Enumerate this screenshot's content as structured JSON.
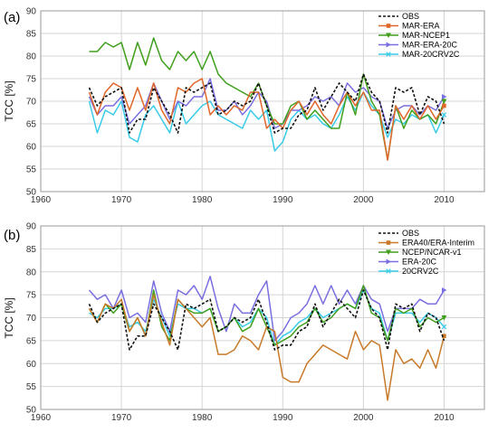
{
  "chart_data": [
    {
      "type": "line",
      "panel_label": "(a)",
      "ylabel": "TCC [%]",
      "xlim": [
        1960,
        2015
      ],
      "ylim": [
        50,
        90
      ],
      "xticks": [
        1960,
        1970,
        1980,
        1990,
        2000,
        2010
      ],
      "yticks": [
        50,
        55,
        60,
        65,
        70,
        75,
        80,
        85,
        90
      ],
      "grid": true,
      "legend_position": "top-right",
      "x": [
        1966,
        1967,
        1968,
        1969,
        1970,
        1971,
        1972,
        1973,
        1974,
        1975,
        1976,
        1977,
        1978,
        1979,
        1980,
        1981,
        1982,
        1983,
        1984,
        1985,
        1986,
        1987,
        1988,
        1989,
        1990,
        1991,
        1992,
        1993,
        1994,
        1995,
        1996,
        1997,
        1998,
        1999,
        2000,
        2001,
        2002,
        2003,
        2004,
        2005,
        2006,
        2007,
        2008,
        2009,
        2010
      ],
      "series": [
        {
          "name": "OBS",
          "color": "#111111",
          "dash": true,
          "marker": "none",
          "values": [
            73,
            69,
            71,
            72,
            73,
            63,
            66,
            66,
            73,
            70,
            67,
            63,
            73,
            72,
            73,
            74,
            67,
            68,
            70,
            69,
            70,
            74,
            69,
            63,
            64,
            64,
            67,
            68,
            73,
            68,
            71,
            74,
            72,
            70,
            76,
            72,
            70,
            63,
            73,
            72,
            73,
            67,
            71,
            70,
            65
          ]
        },
        {
          "name": "MAR-ERA",
          "color": "#e0662a",
          "dash": false,
          "marker": "square",
          "values": [
            72,
            67,
            72,
            74,
            73,
            68,
            73,
            68,
            74,
            68,
            65,
            73,
            72,
            74,
            75,
            67,
            69,
            67,
            69,
            68,
            72,
            72,
            64,
            66,
            64,
            68,
            70,
            67,
            70,
            67,
            65,
            69,
            72,
            69,
            72,
            68,
            68,
            57,
            69,
            66,
            69,
            66,
            69,
            66,
            69
          ]
        },
        {
          "name": "MAR-NCEP1",
          "color": "#3f9f1c",
          "dash": false,
          "marker": "triangle-down",
          "values": [
            81,
            81,
            83,
            82,
            83,
            77,
            83,
            78,
            84,
            79,
            77,
            81,
            79,
            81,
            77,
            81,
            76,
            74,
            73,
            72,
            71,
            74,
            69,
            65,
            65,
            69,
            70,
            66,
            68,
            66,
            64,
            64,
            72,
            67,
            76,
            70,
            67,
            57,
            69,
            64,
            68,
            66,
            67,
            65,
            70
          ]
        },
        {
          "name": "MAR-ERA-20C",
          "color": "#7a6fe0",
          "dash": false,
          "marker": "triangle-right",
          "values": [
            71,
            67,
            69,
            69,
            71,
            65,
            67,
            69,
            74,
            70,
            66,
            70,
            69,
            71,
            71,
            75,
            68,
            68,
            70,
            67,
            69,
            72,
            70,
            64,
            65,
            68,
            68,
            69,
            71,
            70,
            71,
            69,
            74,
            72,
            73,
            71,
            70,
            64,
            68,
            69,
            69,
            67,
            69,
            68,
            71
          ]
        },
        {
          "name": "MAR-20CRV2C",
          "color": "#38cbe8",
          "dash": false,
          "marker": "x",
          "values": [
            70,
            63,
            68,
            67,
            70,
            62,
            61,
            67,
            69,
            66,
            63,
            70,
            65,
            67,
            69,
            70,
            67,
            66,
            65,
            64,
            68,
            66,
            68,
            59,
            61,
            66,
            68,
            66,
            67,
            65,
            64,
            67,
            71,
            68,
            72,
            69,
            67,
            62,
            66,
            65,
            67,
            66,
            67,
            63,
            67
          ]
        }
      ]
    },
    {
      "type": "line",
      "panel_label": "(b)",
      "ylabel": "TCC [%]",
      "xlim": [
        1960,
        2015
      ],
      "ylim": [
        50,
        90
      ],
      "xticks": [
        1960,
        1970,
        1980,
        1990,
        2000,
        2010
      ],
      "yticks": [
        50,
        55,
        60,
        65,
        70,
        75,
        80,
        85,
        90
      ],
      "grid": true,
      "legend_position": "top-right",
      "x": [
        1966,
        1967,
        1968,
        1969,
        1970,
        1971,
        1972,
        1973,
        1974,
        1975,
        1976,
        1977,
        1978,
        1979,
        1980,
        1981,
        1982,
        1983,
        1984,
        1985,
        1986,
        1987,
        1988,
        1989,
        1990,
        1991,
        1992,
        1993,
        1994,
        1995,
        1996,
        1997,
        1998,
        1999,
        2000,
        2001,
        2002,
        2003,
        2004,
        2005,
        2006,
        2007,
        2008,
        2009,
        2010
      ],
      "series": [
        {
          "name": "OBS",
          "color": "#111111",
          "dash": true,
          "marker": "none",
          "values": [
            73,
            69,
            71,
            72,
            73,
            63,
            66,
            66,
            73,
            70,
            67,
            63,
            73,
            72,
            73,
            74,
            67,
            68,
            70,
            69,
            70,
            74,
            69,
            63,
            64,
            64,
            67,
            68,
            73,
            68,
            71,
            74,
            72,
            70,
            76,
            72,
            70,
            63,
            73,
            72,
            73,
            67,
            71,
            70,
            65
          ]
        },
        {
          "name": "ERA40/ERA-Interim",
          "color": "#c87a2a",
          "dash": false,
          "marker": "square",
          "values": [
            72,
            69,
            73,
            72,
            74,
            67,
            70,
            66,
            75,
            69,
            64,
            74,
            72,
            70,
            68,
            70,
            62,
            62,
            63,
            66,
            65,
            63,
            68,
            67,
            57,
            56,
            56,
            60,
            62,
            64,
            63,
            62,
            61,
            67,
            63,
            65,
            64,
            52,
            63,
            60,
            61,
            59,
            63,
            59,
            66
          ]
        },
        {
          "name": "NCEP/NCAR-v1",
          "color": "#3f9f1c",
          "dash": false,
          "marker": "triangle-down",
          "values": [
            72,
            69,
            73,
            71,
            73,
            67,
            70,
            66,
            76,
            68,
            65,
            74,
            72,
            71,
            71,
            72,
            67,
            68,
            70,
            67,
            68,
            72,
            68,
            64,
            65,
            66,
            68,
            69,
            72,
            69,
            70,
            72,
            73,
            72,
            77,
            71,
            70,
            65,
            72,
            71,
            72,
            68,
            70,
            69,
            70
          ]
        },
        {
          "name": "ERA-20C",
          "color": "#7a6fe0",
          "dash": false,
          "marker": "triangle-right",
          "values": [
            76,
            74,
            75,
            72,
            76,
            70,
            71,
            69,
            78,
            71,
            67,
            76,
            75,
            77,
            74,
            79,
            72,
            67,
            73,
            71,
            71,
            75,
            78,
            65,
            67,
            70,
            71,
            73,
            77,
            73,
            77,
            73,
            76,
            73,
            77,
            74,
            73,
            67,
            72,
            72,
            72,
            74,
            73,
            73,
            76
          ]
        },
        {
          "name": "20CRV2C",
          "color": "#38cbe8",
          "dash": false,
          "marker": "x",
          "values": [
            71,
            70,
            72,
            72,
            73,
            68,
            69,
            67,
            74,
            70,
            66,
            73,
            72,
            72,
            71,
            72,
            67,
            68,
            70,
            68,
            69,
            72,
            70,
            64,
            66,
            67,
            69,
            70,
            72,
            70,
            71,
            72,
            73,
            72,
            76,
            72,
            71,
            65,
            71,
            71,
            71,
            69,
            71,
            70,
            68
          ]
        }
      ]
    }
  ]
}
